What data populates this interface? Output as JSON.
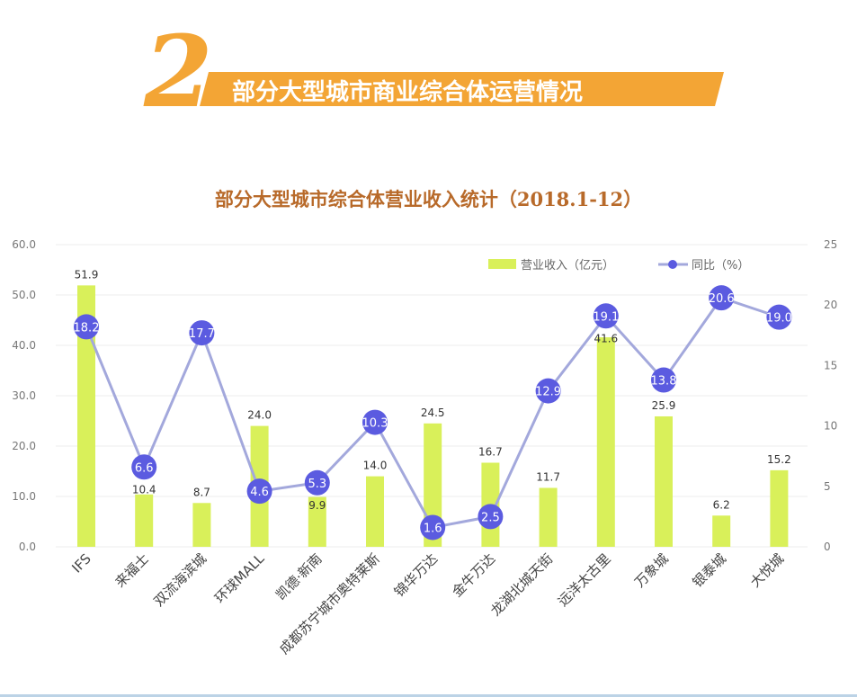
{
  "banner": {
    "number": "2",
    "title": "部分大型城市商业综合体运营情况",
    "color": "#f3a535"
  },
  "chart_data": {
    "type": "bar+line",
    "title": "部分大型城市综合体营业收入统计（2018.1-12）",
    "categories": [
      "IFS",
      "来福士",
      "双流海滨城",
      "环球MALL",
      "凯德·新南",
      "成都苏宁城市奥特莱斯",
      "锦华万达",
      "金牛万达",
      "龙湖北城天街",
      "远洋太古里",
      "万象城",
      "银泰城",
      "大悦城"
    ],
    "series": [
      {
        "name": "营业收入（亿元）",
        "type": "bar",
        "axis": "left",
        "color": "#d9f05a",
        "values": [
          51.9,
          10.4,
          8.7,
          24.0,
          9.9,
          14.0,
          24.5,
          16.7,
          11.7,
          41.6,
          25.9,
          6.2,
          15.2
        ]
      },
      {
        "name": "同比（%）",
        "type": "line",
        "axis": "right",
        "color": "#5b5be0",
        "line_color": "#a3a8dc",
        "values": [
          18.2,
          6.6,
          17.7,
          4.6,
          5.3,
          10.3,
          1.6,
          2.5,
          12.9,
          19.1,
          13.8,
          20.6,
          19.0
        ]
      }
    ],
    "y_left": {
      "ylim": [
        0,
        60
      ],
      "ticks": [
        "0.0",
        "10.0",
        "20.0",
        "30.0",
        "40.0",
        "50.0",
        "60.0"
      ]
    },
    "y_right": {
      "ylim": [
        0,
        25
      ],
      "ticks": [
        "0",
        "5",
        "10",
        "15",
        "20",
        "25"
      ]
    },
    "grid": true,
    "legend": "top-right"
  }
}
